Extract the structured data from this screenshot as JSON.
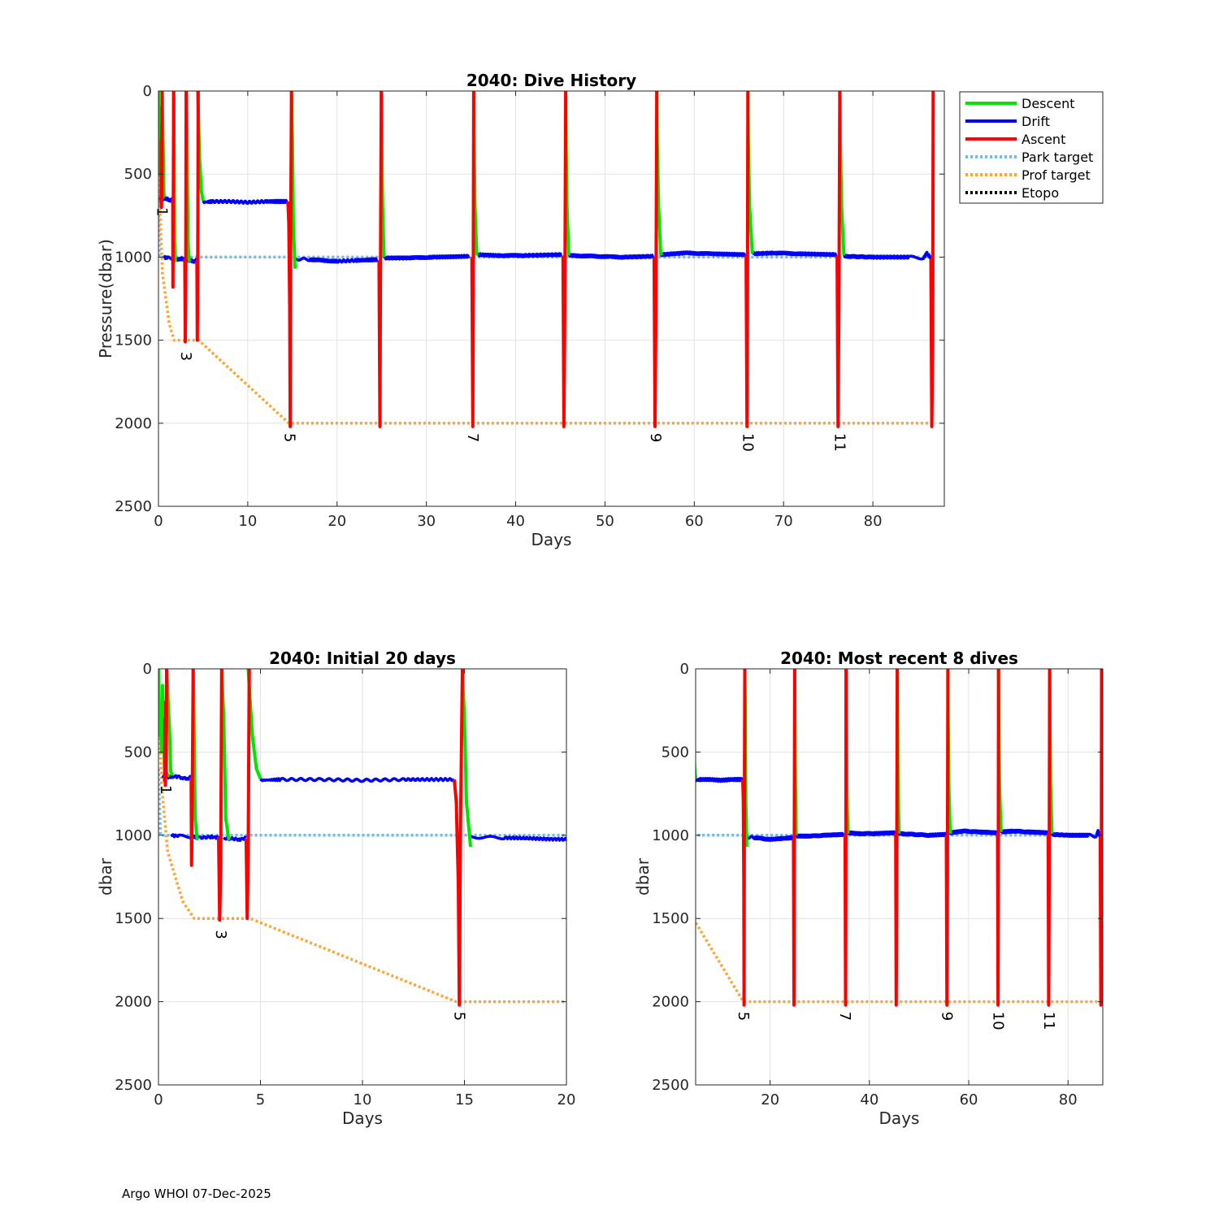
{
  "footer": "Argo WHOI 07-Dec-2025",
  "colors": {
    "descent": "#00e600",
    "drift": "#0000ff",
    "ascent": "#ff0000",
    "park_target": "#79b9dd",
    "prof_target": "#ffa535",
    "etopo": "#000000",
    "grid": "#e2e2e2",
    "axis": "#262626"
  },
  "legend": {
    "entries": [
      {
        "label": "Descent",
        "key": "descent",
        "style": "solid"
      },
      {
        "label": "Drift",
        "key": "drift",
        "style": "solid"
      },
      {
        "label": "Ascent",
        "key": "ascent",
        "style": "solid"
      },
      {
        "label": "Park target",
        "key": "park_target",
        "style": "dotted"
      },
      {
        "label": "Prof target",
        "key": "prof_target",
        "style": "dotted"
      },
      {
        "label": "Etopo",
        "key": "etopo",
        "style": "dotted"
      }
    ]
  },
  "chart_data": [
    {
      "type": "line",
      "title": "2040: Dive History",
      "xlabel": "Days",
      "ylabel": "Pressure(dbar)",
      "xlim": [
        0,
        88
      ],
      "ylim": [
        0,
        2500
      ],
      "y_reversed": true,
      "grid": true,
      "xticks": [
        0,
        10,
        20,
        30,
        40,
        50,
        60,
        70,
        80
      ],
      "yticks": [
        0,
        500,
        1000,
        1500,
        2000,
        2500
      ],
      "dive_labels": [
        {
          "label": "1",
          "day": 0.5,
          "pressure": 660
        },
        {
          "label": "3",
          "day": 3.2,
          "pressure": 1530
        },
        {
          "label": "5",
          "day": 14.8,
          "pressure": 2020
        },
        {
          "label": "7",
          "day": 35.3,
          "pressure": 2020
        },
        {
          "label": "9",
          "day": 55.8,
          "pressure": 2020
        },
        {
          "label": "10",
          "day": 66.1,
          "pressure": 2020
        },
        {
          "label": "11",
          "day": 76.4,
          "pressure": 2020
        }
      ]
    },
    {
      "type": "line",
      "title": "2040: Initial 20 days",
      "xlabel": "Days",
      "ylabel": "dbar",
      "xlim": [
        0,
        20
      ],
      "ylim": [
        0,
        2500
      ],
      "y_reversed": true,
      "grid": true,
      "xticks": [
        0,
        5,
        10,
        15,
        20
      ],
      "yticks": [
        0,
        500,
        1000,
        1500,
        2000,
        2500
      ],
      "dive_labels": [
        {
          "label": "1",
          "day": 0.4,
          "pressure": 660
        },
        {
          "label": "3",
          "day": 3.1,
          "pressure": 1530
        },
        {
          "label": "5",
          "day": 14.8,
          "pressure": 2020
        }
      ]
    },
    {
      "type": "line",
      "title": "2040: Most recent 8 dives",
      "xlabel": "Days",
      "ylabel": "dbar",
      "xlim": [
        5,
        87
      ],
      "ylim": [
        0,
        2500
      ],
      "y_reversed": true,
      "grid": true,
      "xticks": [
        20,
        40,
        60,
        80
      ],
      "yticks": [
        0,
        500,
        1000,
        1500,
        2000,
        2500
      ],
      "dive_labels": [
        {
          "label": "5",
          "day": 14.8,
          "pressure": 2020
        },
        {
          "label": "7",
          "day": 35.3,
          "pressure": 2020
        },
        {
          "label": "9",
          "day": 55.8,
          "pressure": 2020
        },
        {
          "label": "10",
          "day": 66.1,
          "pressure": 2020
        },
        {
          "label": "11",
          "day": 76.4,
          "pressure": 2020
        }
      ]
    }
  ],
  "series": {
    "park_target": {
      "days": [
        0,
        0.1,
        86.7
      ],
      "pressure": [
        600,
        1000,
        1000
      ]
    },
    "prof_target": {
      "days": [
        0,
        0.15,
        0.45,
        1.2,
        1.75,
        3.1,
        4.5,
        14.6,
        14.8,
        86.7
      ],
      "pressure": [
        150,
        700,
        1100,
        1400,
        1500,
        1500,
        1500,
        2000,
        2000,
        2000
      ]
    },
    "drift": [
      {
        "days": [
          0.2,
          0.6,
          0.75,
          1.0,
          1.2,
          1.4,
          1.6
        ],
        "pressure": [
          650,
          650,
          645,
          650,
          655,
          660,
          650
        ]
      },
      {
        "days": [
          0.6,
          1.0,
          1.7,
          2.0,
          2.6,
          3.0
        ],
        "pressure": [
          1000,
          1005,
          1010,
          1015,
          1010,
          1015
        ]
      },
      {
        "days": [
          3.2,
          3.5,
          4.0,
          4.3
        ],
        "pressure": [
          1020,
          1020,
          1025,
          1015
        ]
      },
      {
        "days": [
          5.0,
          6,
          8,
          10,
          12,
          14.5
        ],
        "pressure": [
          670,
          665,
          665,
          670,
          665,
          665
        ]
      },
      {
        "days": [
          15.2,
          17,
          20,
          22,
          24.5
        ],
        "pressure": [
          1010,
          1015,
          1025,
          1020,
          1015
        ]
      },
      {
        "days": [
          25.3,
          28,
          31,
          34.8
        ],
        "pressure": [
          1005,
          1005,
          1000,
          995
        ]
      },
      {
        "days": [
          35.7,
          38,
          41,
          45.1
        ],
        "pressure": [
          985,
          990,
          990,
          985
        ]
      },
      {
        "days": [
          46.0,
          49,
          52,
          55.4
        ],
        "pressure": [
          990,
          995,
          1000,
          995
        ]
      },
      {
        "days": [
          56.3,
          59,
          62,
          65.7
        ],
        "pressure": [
          985,
          975,
          980,
          985
        ]
      },
      {
        "days": [
          66.6,
          69,
          72,
          75.9
        ],
        "pressure": [
          980,
          975,
          980,
          985
        ]
      },
      {
        "days": [
          76.8,
          80,
          84,
          85.7,
          86.0,
          86.6
        ],
        "pressure": [
          995,
          1000,
          1000,
          1005,
          975,
          1010
        ]
      }
    ],
    "descent": [
      {
        "days": [
          0.0,
          0.05,
          0.1,
          0.15,
          0.2,
          0.3,
          0.5
        ],
        "pressure": [
          0,
          400,
          300,
          500,
          100,
          600,
          650
        ]
      },
      {
        "days": [
          0.4,
          0.55,
          0.6,
          0.7
        ],
        "pressure": [
          0,
          400,
          620,
          640
        ]
      },
      {
        "days": [
          1.7,
          1.75,
          1.8,
          1.9
        ],
        "pressure": [
          0,
          400,
          900,
          1030
        ]
      },
      {
        "days": [
          3.1,
          3.2,
          3.3,
          3.45
        ],
        "pressure": [
          0,
          300,
          900,
          1030
        ]
      },
      {
        "days": [
          4.4,
          4.5,
          4.6,
          4.8,
          5.0
        ],
        "pressure": [
          0,
          200,
          400,
          600,
          660
        ]
      },
      {
        "days": [
          14.9,
          15.0,
          15.1,
          15.3
        ],
        "pressure": [
          0,
          300,
          800,
          1070
        ]
      },
      {
        "days": [
          24.95,
          25.0,
          25.1,
          25.25
        ],
        "pressure": [
          0,
          300,
          700,
          1000
        ]
      },
      {
        "days": [
          35.3,
          35.35,
          35.45,
          35.65
        ],
        "pressure": [
          0,
          300,
          700,
          990
        ]
      },
      {
        "days": [
          45.6,
          45.65,
          45.75,
          45.95
        ],
        "pressure": [
          0,
          300,
          700,
          990
        ]
      },
      {
        "days": [
          55.8,
          55.85,
          56.0,
          56.25
        ],
        "pressure": [
          0,
          300,
          700,
          990
        ]
      },
      {
        "days": [
          66.0,
          66.05,
          66.2,
          66.5
        ],
        "pressure": [
          0,
          300,
          700,
          980
        ]
      },
      {
        "days": [
          76.3,
          76.35,
          76.5,
          76.75
        ],
        "pressure": [
          0,
          300,
          700,
          990
        ]
      }
    ],
    "ascent": [
      {
        "days": [
          0.3,
          0.32,
          0.34,
          0.36,
          0.38,
          0.4
        ],
        "pressure": [
          680,
          300,
          700,
          200,
          650,
          0
        ]
      },
      {
        "days": [
          1.6,
          1.62,
          1.66,
          1.7
        ],
        "pressure": [
          650,
          1180,
          700,
          0
        ]
      },
      {
        "days": [
          2.95,
          3.0,
          3.05,
          3.1
        ],
        "pressure": [
          1010,
          1510,
          1200,
          0
        ]
      },
      {
        "days": [
          4.3,
          4.35,
          4.4,
          4.45
        ],
        "pressure": [
          1020,
          1500,
          1100,
          0
        ]
      },
      {
        "days": [
          14.5,
          14.6,
          14.7,
          14.75,
          14.8,
          14.9
        ],
        "pressure": [
          665,
          800,
          1300,
          2020,
          1000,
          0
        ]
      },
      {
        "days": [
          24.7,
          24.8,
          24.85,
          24.95
        ],
        "pressure": [
          1020,
          2020,
          1200,
          0
        ]
      },
      {
        "days": [
          35.1,
          35.2,
          35.25,
          35.3
        ],
        "pressure": [
          1000,
          2020,
          1300,
          0
        ]
      },
      {
        "days": [
          45.3,
          45.4,
          45.5,
          45.6
        ],
        "pressure": [
          990,
          2020,
          1300,
          0
        ]
      },
      {
        "days": [
          55.5,
          55.6,
          55.7,
          55.8
        ],
        "pressure": [
          1000,
          2020,
          1300,
          0
        ]
      },
      {
        "days": [
          65.8,
          65.9,
          65.95,
          66.0
        ],
        "pressure": [
          990,
          2020,
          1400,
          0
        ]
      },
      {
        "days": [
          76.0,
          76.1,
          76.2,
          76.3
        ],
        "pressure": [
          990,
          2020,
          1300,
          0
        ]
      },
      {
        "days": [
          86.5,
          86.6,
          86.7,
          86.75
        ],
        "pressure": [
          1010,
          2020,
          1500,
          0
        ]
      }
    ]
  }
}
